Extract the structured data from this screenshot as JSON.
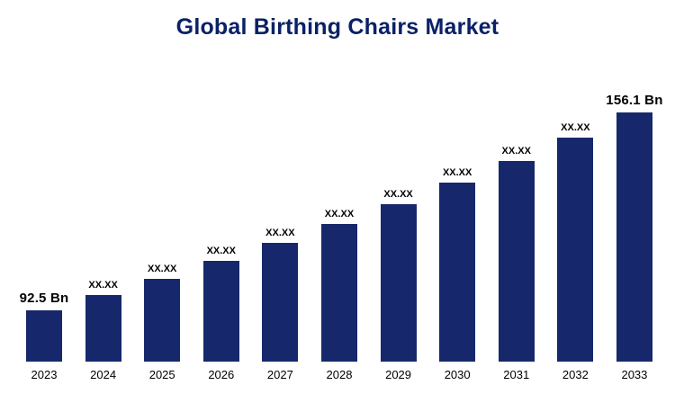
{
  "title": "Global Birthing Chairs Market",
  "colors": {
    "bar": "#16286b",
    "title": "#0a2166",
    "label": "#000000"
  },
  "chart_data": {
    "type": "bar",
    "title": "Global Birthing Chairs Market",
    "categories": [
      "2023",
      "2024",
      "2025",
      "2026",
      "2027",
      "2028",
      "2029",
      "2030",
      "2031",
      "2032",
      "2033"
    ],
    "values": [
      92.5,
      97.5,
      102.7,
      108.3,
      114.1,
      120.2,
      126.7,
      133.5,
      140.7,
      148.2,
      156.1
    ],
    "bar_labels": [
      "92.5 Bn",
      "XX.XX",
      "XX.XX",
      "XX.XX",
      "XX.XX",
      "XX.XX",
      "XX.XX",
      "XX.XX",
      "XX.XX",
      "XX.XX",
      "156.1 Bn"
    ],
    "unit": "Bn",
    "xlabel": "",
    "ylabel": "",
    "ylim": [
      76,
      160
    ],
    "grid": false,
    "legend": "none",
    "axis_lines": "none"
  }
}
